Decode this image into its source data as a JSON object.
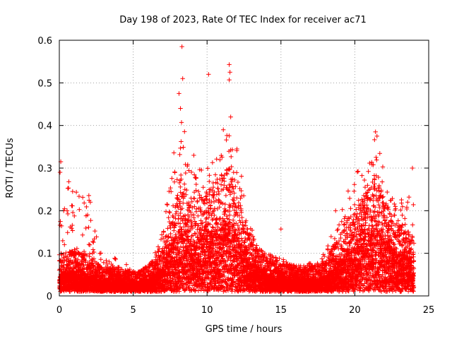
{
  "chart_data": {
    "type": "scatter",
    "title": "Day 198 of 2023, Rate Of TEC Index for receiver ac71",
    "xlabel": "GPS time / hours",
    "ylabel": "ROTI / TECUs",
    "xlim": [
      0,
      25
    ],
    "ylim": [
      0,
      0.6
    ],
    "xticks": [
      0,
      5,
      10,
      15,
      20,
      25
    ],
    "yticks": [
      0,
      0.1,
      0.2,
      0.3,
      0.4,
      0.5,
      0.6
    ],
    "xtick_labels": [
      "0",
      "5",
      "10",
      "15",
      "20",
      "25"
    ],
    "ytick_labels": [
      "0",
      "0.1",
      "0.2",
      "0.3",
      "0.4",
      "0.5",
      "0.6"
    ],
    "grid": true,
    "marker": "+",
    "marker_color": "#ff0000",
    "x_data_extent": [
      0,
      24
    ],
    "baseline_roti": 0.03,
    "envelope": [
      {
        "x": 0.0,
        "typ": 0.05,
        "upper": 0.32
      },
      {
        "x": 1.0,
        "typ": 0.06,
        "upper": 0.25
      },
      {
        "x": 2.0,
        "typ": 0.05,
        "upper": 0.24
      },
      {
        "x": 3.0,
        "typ": 0.03,
        "upper": 0.08
      },
      {
        "x": 4.0,
        "typ": 0.035,
        "upper": 0.1
      },
      {
        "x": 5.0,
        "typ": 0.025,
        "upper": 0.06
      },
      {
        "x": 6.0,
        "typ": 0.035,
        "upper": 0.07
      },
      {
        "x": 7.0,
        "typ": 0.06,
        "upper": 0.15
      },
      {
        "x": 8.0,
        "typ": 0.15,
        "upper": 0.4
      },
      {
        "x": 8.3,
        "typ": 0.17,
        "upper": 0.45
      },
      {
        "x": 9.0,
        "typ": 0.12,
        "upper": 0.3
      },
      {
        "x": 10.0,
        "typ": 0.15,
        "upper": 0.31
      },
      {
        "x": 11.0,
        "typ": 0.17,
        "upper": 0.34
      },
      {
        "x": 11.5,
        "typ": 0.18,
        "upper": 0.42
      },
      {
        "x": 12.0,
        "typ": 0.14,
        "upper": 0.35
      },
      {
        "x": 13.0,
        "typ": 0.08,
        "upper": 0.16
      },
      {
        "x": 14.0,
        "typ": 0.05,
        "upper": 0.1
      },
      {
        "x": 15.0,
        "typ": 0.04,
        "upper": 0.09
      },
      {
        "x": 16.0,
        "typ": 0.035,
        "upper": 0.07
      },
      {
        "x": 17.0,
        "typ": 0.035,
        "upper": 0.08
      },
      {
        "x": 18.0,
        "typ": 0.045,
        "upper": 0.1
      },
      {
        "x": 19.0,
        "typ": 0.08,
        "upper": 0.2
      },
      {
        "x": 20.0,
        "typ": 0.12,
        "upper": 0.29
      },
      {
        "x": 21.0,
        "typ": 0.15,
        "upper": 0.32
      },
      {
        "x": 21.5,
        "typ": 0.17,
        "upper": 0.39
      },
      {
        "x": 22.0,
        "typ": 0.13,
        "upper": 0.29
      },
      {
        "x": 23.0,
        "typ": 0.1,
        "upper": 0.22
      },
      {
        "x": 24.0,
        "typ": 0.08,
        "upper": 0.3
      }
    ],
    "outliers": [
      {
        "x": 8.3,
        "y": 0.585
      },
      {
        "x": 8.35,
        "y": 0.51
      },
      {
        "x": 8.1,
        "y": 0.475
      },
      {
        "x": 8.2,
        "y": 0.44
      },
      {
        "x": 10.1,
        "y": 0.52
      },
      {
        "x": 11.5,
        "y": 0.543
      },
      {
        "x": 11.55,
        "y": 0.525
      },
      {
        "x": 11.5,
        "y": 0.507
      },
      {
        "x": 11.6,
        "y": 0.42
      },
      {
        "x": 11.1,
        "y": 0.39
      },
      {
        "x": 9.1,
        "y": 0.33
      },
      {
        "x": 21.4,
        "y": 0.385
      },
      {
        "x": 21.5,
        "y": 0.375
      },
      {
        "x": 23.9,
        "y": 0.3
      },
      {
        "x": 0.1,
        "y": 0.315
      },
      {
        "x": 0.05,
        "y": 0.29
      },
      {
        "x": 2.1,
        "y": 0.22
      },
      {
        "x": 0.9,
        "y": 0.245
      },
      {
        "x": 15.0,
        "y": 0.157
      },
      {
        "x": 18.7,
        "y": 0.2
      }
    ]
  }
}
